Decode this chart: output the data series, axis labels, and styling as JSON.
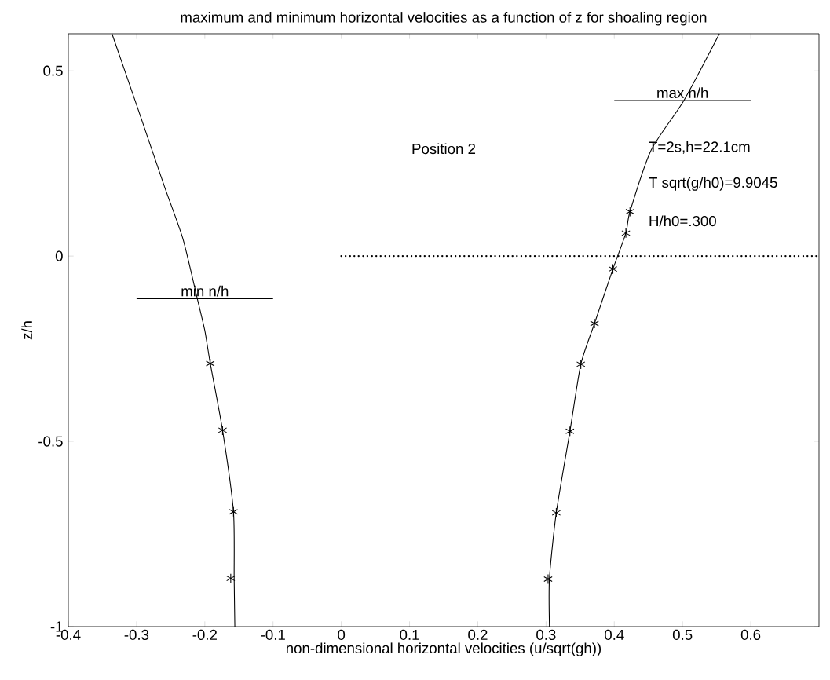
{
  "chart_data": {
    "type": "line",
    "title": "maximum and minimum horizontal velocities as a function of z for shoaling region",
    "xlabel": "non-dimensional horizontal velocities (u/sqrt(gh))",
    "ylabel": "z/h",
    "xlim": [
      -0.4,
      0.7
    ],
    "ylim": [
      -1,
      0.6
    ],
    "xticks": [
      -0.4,
      -0.3,
      -0.2,
      -0.1,
      0,
      0.1,
      0.2,
      0.3,
      0.4,
      0.5,
      0.6
    ],
    "yticks": [
      -1,
      -0.5,
      0,
      0.5
    ],
    "annotations": [
      "Position 2",
      "T=2s,h=22.1cm",
      "T sqrt(g/h0)=9.9045",
      "H/h0=.300"
    ],
    "series": [
      {
        "color": "#000000",
        "x": [
          -0.336,
          -0.297,
          -0.259,
          -0.232,
          -0.211,
          -0.2,
          -0.192,
          -0.174,
          -0.158,
          -0.157,
          -0.156
        ],
        "values": [
          0.6,
          0.392,
          0.187,
          0.046,
          -0.115,
          -0.201,
          -0.29,
          -0.47,
          -0.69,
          -0.87,
          -1
        ]
      },
      {
        "type": "scatter",
        "marker": "cross",
        "color": "#000000",
        "x": [
          -0.192,
          -0.174,
          -0.158,
          -0.162
        ],
        "values": [
          -0.29,
          -0.47,
          -0.69,
          -0.87
        ]
      },
      {
        "color": "#000000",
        "x": [
          0.554,
          0.502,
          0.454,
          0.423,
          0.417,
          0.398,
          0.371,
          0.351,
          0.335,
          0.315,
          0.305,
          0.305
        ],
        "values": [
          0.6,
          0.42,
          0.286,
          0.12,
          0.062,
          -0.035,
          -0.182,
          -0.292,
          -0.473,
          -0.693,
          -0.87,
          -1
        ]
      },
      {
        "type": "scatter",
        "marker": "cross",
        "color": "#000000",
        "x": [
          0.423,
          0.417,
          0.398,
          0.371,
          0.351,
          0.335,
          0.315,
          0.303
        ],
        "values": [
          0.12,
          0.062,
          -0.035,
          -0.182,
          -0.292,
          -0.473,
          -0.693,
          -0.872
        ]
      },
      {
        "name": "max n/h",
        "color": "#000000",
        "x": [
          0.4,
          0.6
        ],
        "values": [
          0.42,
          0.42
        ]
      },
      {
        "name": "min n/h",
        "color": "#000000",
        "x": [
          -0.3,
          -0.1
        ],
        "values": [
          -0.115,
          -0.115
        ]
      },
      {
        "line_style": "dotted",
        "color": "#000000",
        "x": [
          0,
          0.7
        ],
        "values": [
          0,
          0
        ]
      }
    ]
  }
}
